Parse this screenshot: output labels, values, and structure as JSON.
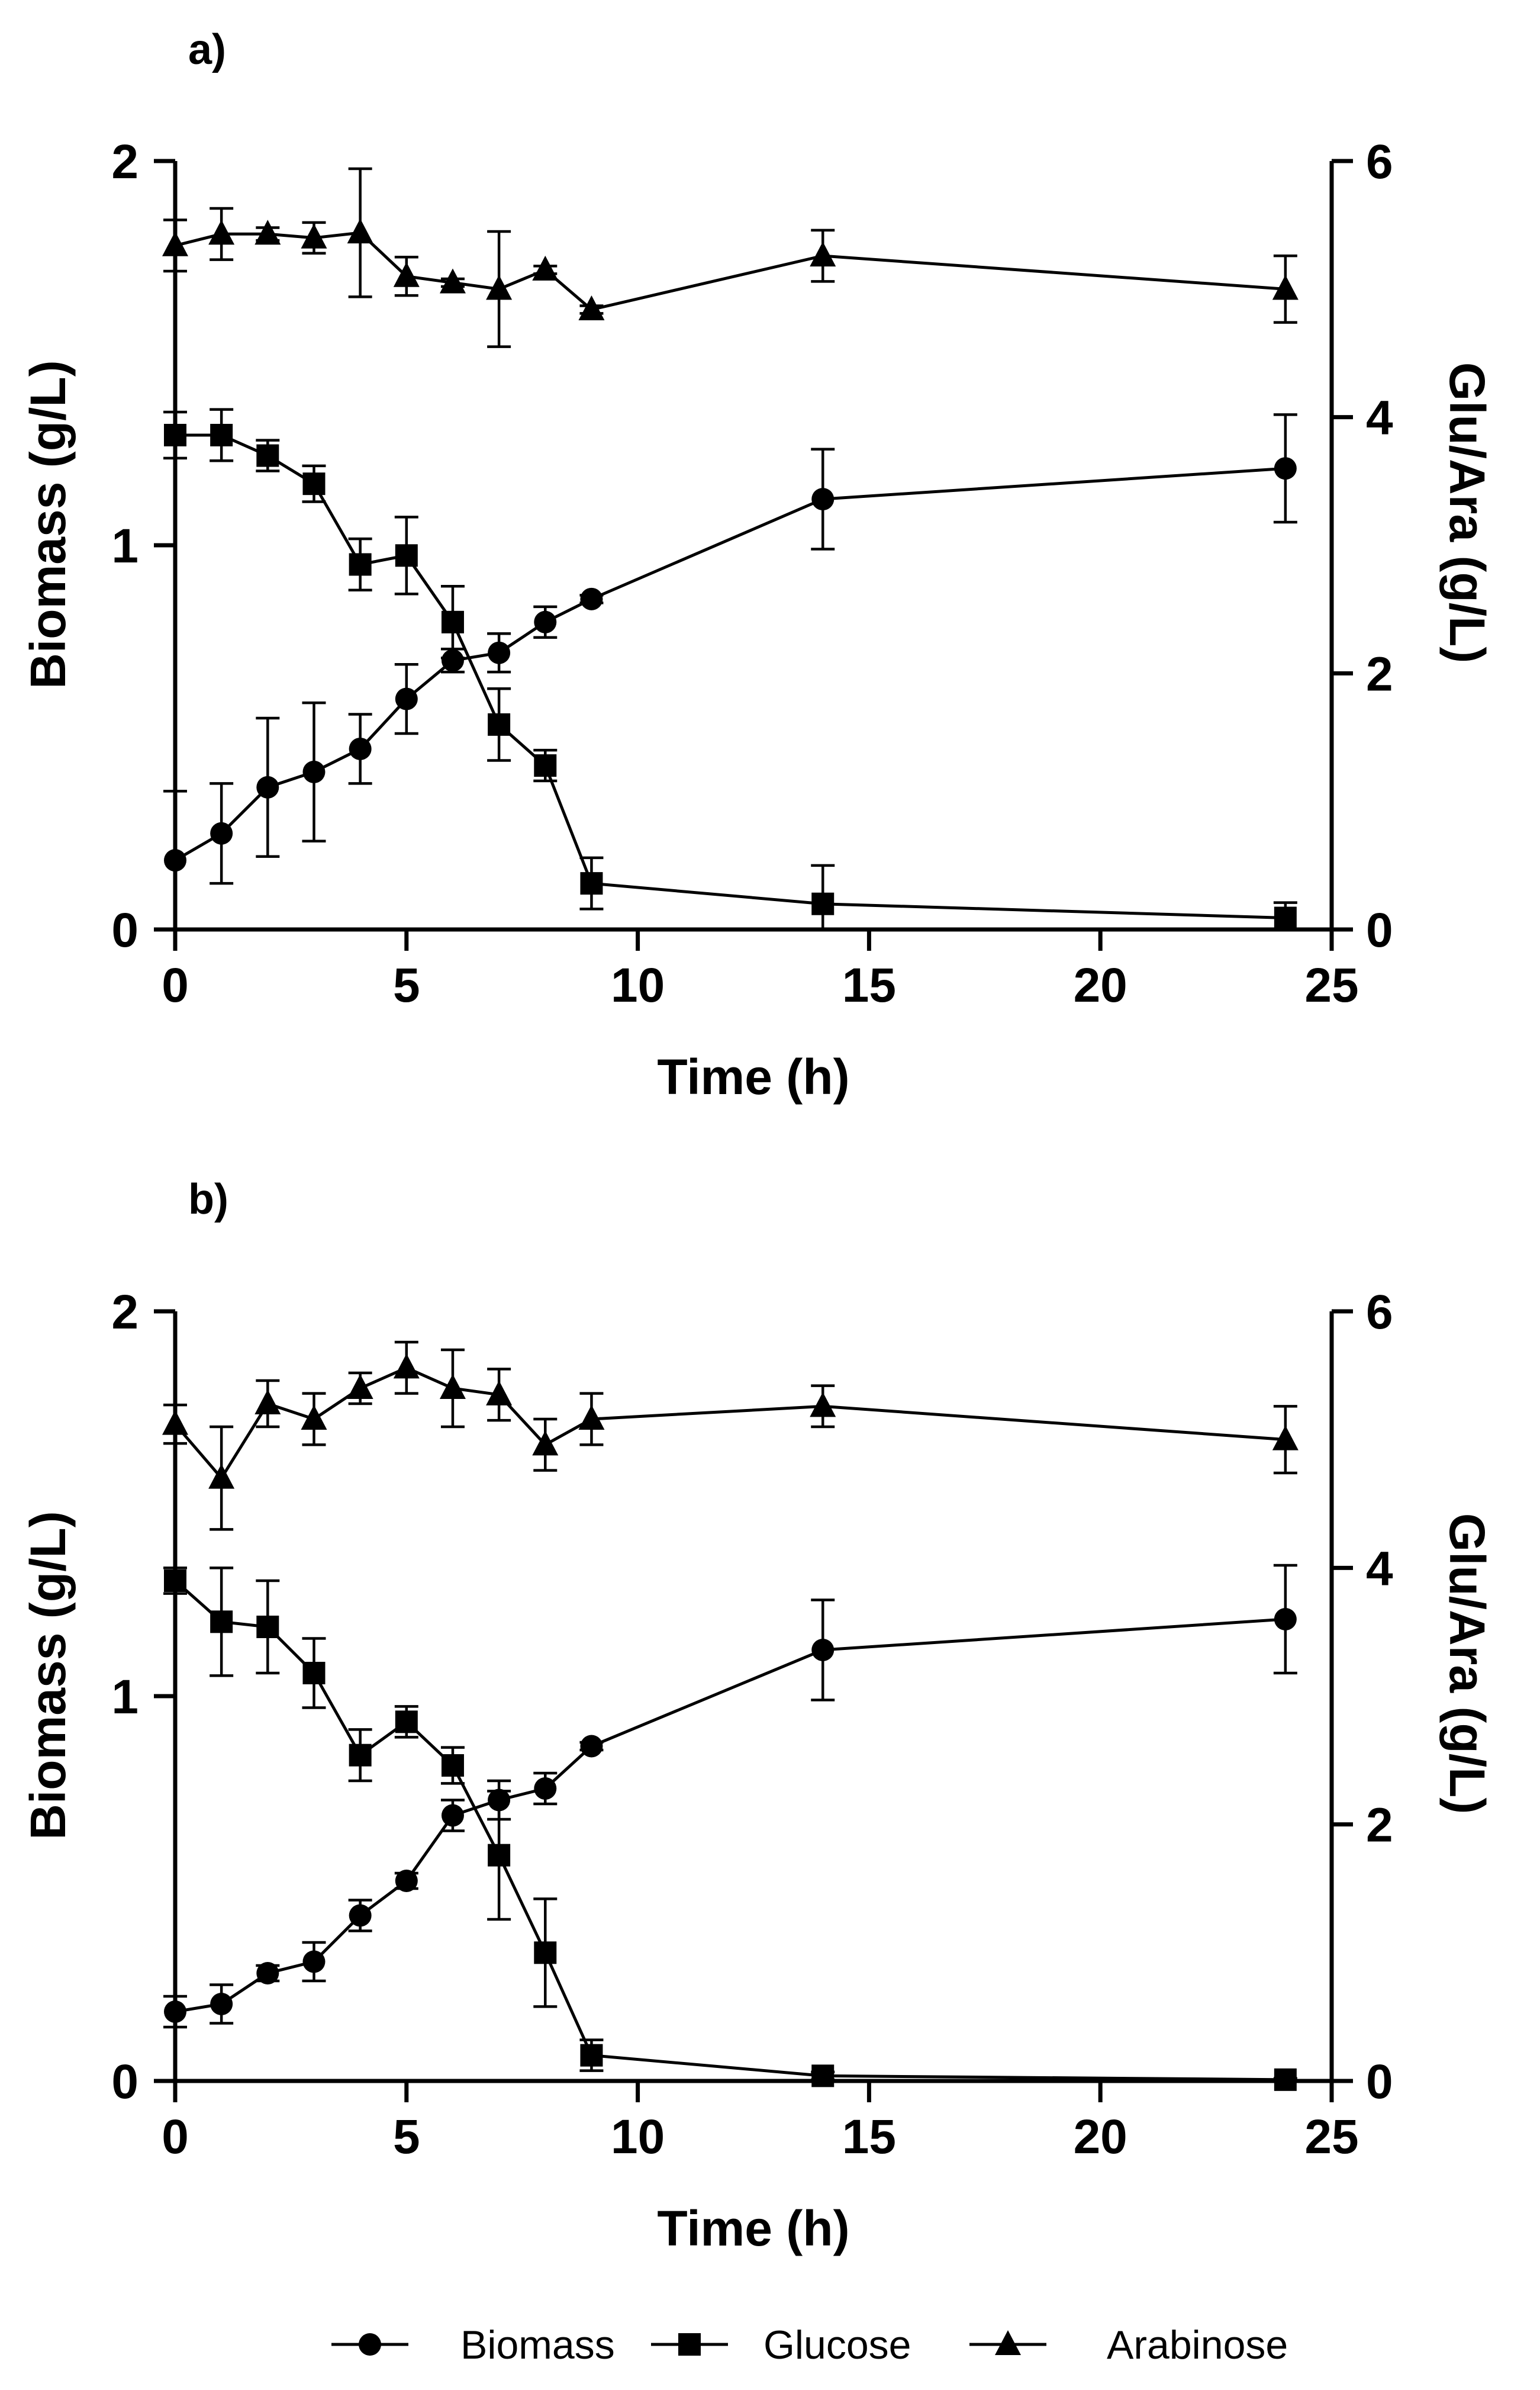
{
  "chart_data": [
    {
      "type": "line",
      "panel_label": "a)",
      "xlabel": "Time (h)",
      "ylabel": "Biomass (g/L)",
      "y2label": "Glu/Ara (g/L)",
      "xlim": [
        0,
        25
      ],
      "ylim": [
        0,
        2
      ],
      "y2lim": [
        0,
        6
      ],
      "x_ticks": [
        0,
        5,
        10,
        15,
        20,
        25
      ],
      "y_ticks": [
        0,
        1,
        2
      ],
      "y2_ticks": [
        0,
        2,
        4,
        6
      ],
      "x_tick_labels": [
        "0",
        "5",
        "10",
        "15",
        "20",
        "25"
      ],
      "y_tick_labels": [
        "0",
        "1",
        "2"
      ],
      "y2_tick_labels": [
        "0",
        "2",
        "4",
        "6"
      ],
      "series": [
        {
          "name": "Biomass",
          "marker": "circle",
          "axis": "left",
          "x": [
            0,
            1,
            2,
            3,
            4,
            5,
            6,
            7,
            8,
            9,
            14,
            24
          ],
          "values": [
            0.18,
            0.25,
            0.37,
            0.41,
            0.47,
            0.6,
            0.7,
            0.72,
            0.8,
            0.86,
            1.12,
            1.2
          ],
          "errors": [
            0.18,
            0.13,
            0.18,
            0.18,
            0.09,
            0.09,
            0.03,
            0.05,
            0.04,
            0.01,
            0.13,
            0.14
          ]
        },
        {
          "name": "Glucose",
          "marker": "square",
          "axis": "right",
          "x": [
            0,
            1,
            2,
            3,
            4,
            5,
            6,
            7,
            8,
            9,
            14,
            24
          ],
          "values": [
            3.86,
            3.86,
            3.7,
            3.48,
            2.85,
            2.92,
            2.4,
            1.6,
            1.28,
            0.36,
            0.2,
            0.09
          ],
          "errors": [
            0.18,
            0.2,
            0.12,
            0.14,
            0.2,
            0.3,
            0.28,
            0.28,
            0.12,
            0.2,
            0.3,
            0.12
          ]
        },
        {
          "name": "Arabinose",
          "marker": "triangle",
          "axis": "right",
          "x": [
            0,
            1,
            2,
            3,
            4,
            5,
            6,
            7,
            8,
            9,
            14,
            24
          ],
          "values": [
            5.34,
            5.43,
            5.43,
            5.4,
            5.44,
            5.1,
            5.05,
            5.0,
            5.15,
            4.84,
            5.26,
            5.0
          ],
          "errors": [
            0.2,
            0.2,
            0.05,
            0.12,
            0.5,
            0.15,
            0.03,
            0.45,
            0.03,
            0.03,
            0.2,
            0.26
          ]
        }
      ]
    },
    {
      "type": "line",
      "panel_label": "b)",
      "xlabel": "Time (h)",
      "ylabel": "Biomass (g/L)",
      "y2label": "Glu/Ara (g/L)",
      "xlim": [
        0,
        25
      ],
      "ylim": [
        0,
        2
      ],
      "y2lim": [
        0,
        6
      ],
      "x_ticks": [
        0,
        5,
        10,
        15,
        20,
        25
      ],
      "y_ticks": [
        0,
        1,
        2
      ],
      "y2_ticks": [
        0,
        2,
        4,
        6
      ],
      "x_tick_labels": [
        "0",
        "5",
        "10",
        "15",
        "20",
        "25"
      ],
      "y_tick_labels": [
        "0",
        "1",
        "2"
      ],
      "y2_tick_labels": [
        "0",
        "2",
        "4",
        "6"
      ],
      "series": [
        {
          "name": "Biomass",
          "marker": "circle",
          "axis": "left",
          "x": [
            0,
            1,
            2,
            3,
            4,
            5,
            6,
            7,
            8,
            9,
            14,
            24
          ],
          "values": [
            0.18,
            0.2,
            0.28,
            0.31,
            0.43,
            0.52,
            0.69,
            0.73,
            0.76,
            0.87,
            1.12,
            1.2
          ],
          "errors": [
            0.04,
            0.05,
            0.02,
            0.05,
            0.04,
            0.02,
            0.04,
            0.05,
            0.04,
            0.01,
            0.13,
            0.14
          ]
        },
        {
          "name": "Glucose",
          "marker": "square",
          "axis": "right",
          "x": [
            0,
            1,
            2,
            3,
            4,
            5,
            6,
            7,
            8,
            9,
            14,
            24
          ],
          "values": [
            3.9,
            3.58,
            3.54,
            3.18,
            2.54,
            2.8,
            2.46,
            1.76,
            1.0,
            0.2,
            0.04,
            0.01
          ],
          "errors": [
            0.1,
            0.42,
            0.36,
            0.27,
            0.2,
            0.12,
            0.14,
            0.5,
            0.42,
            0.12,
            0.03,
            0.01
          ]
        },
        {
          "name": "Arabinose",
          "marker": "triangle",
          "axis": "right",
          "x": [
            0,
            1,
            2,
            3,
            4,
            5,
            6,
            7,
            8,
            9,
            14,
            24
          ],
          "values": [
            5.12,
            4.7,
            5.28,
            5.16,
            5.4,
            5.56,
            5.4,
            5.35,
            4.96,
            5.16,
            5.26,
            5.0
          ],
          "errors": [
            0.15,
            0.4,
            0.18,
            0.2,
            0.12,
            0.2,
            0.3,
            0.2,
            0.2,
            0.2,
            0.16,
            0.26
          ]
        }
      ]
    }
  ],
  "legend": {
    "position": "bottom",
    "items": [
      {
        "label": "Biomass",
        "marker": "circle"
      },
      {
        "label": "Glucose",
        "marker": "square"
      },
      {
        "label": "Arabinose",
        "marker": "triangle"
      }
    ]
  }
}
